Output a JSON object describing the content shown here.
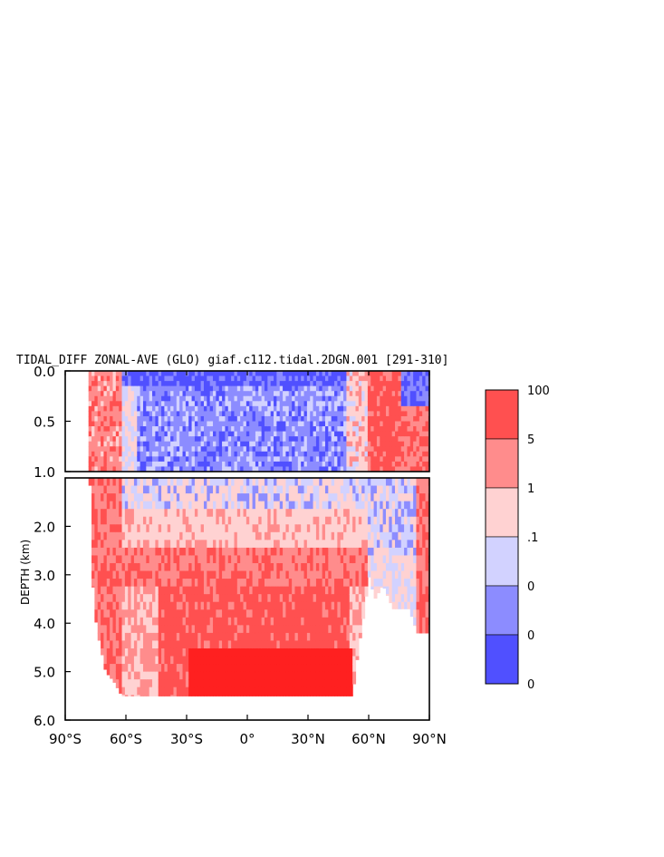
{
  "chart_data": {
    "type": "heatmap",
    "title": "TIDAL_DIFF ZONAL-AVE (GLO) giaf.c112.tidal.2DGN.001 [291-310]",
    "xlabel": "",
    "ylabel": "DEPTH (km)",
    "x_ticks": [
      "90°S",
      "60°S",
      "30°S",
      "0°",
      "30°N",
      "60°N",
      "90°N"
    ],
    "x_tick_values": [
      -90,
      -60,
      -30,
      0,
      30,
      60,
      90
    ],
    "xlim": [
      -90,
      90
    ],
    "upper_panel": {
      "ylim": [
        0.0,
        1.0
      ],
      "y_ticks": [
        "0.0",
        "0.5",
        "1.0"
      ],
      "y_tick_values": [
        0.0,
        0.5,
        1.0
      ]
    },
    "lower_panel": {
      "ylim": [
        1.0,
        6.0
      ],
      "y_ticks": [
        "2.0",
        "3.0",
        "4.0",
        "5.0",
        "6.0"
      ],
      "y_tick_values": [
        2.0,
        3.0,
        4.0,
        5.0,
        6.0
      ]
    },
    "colorbar": {
      "labels": [
        "100",
        "5",
        "1",
        ".1",
        "0",
        "0",
        "0"
      ],
      "colors": [
        "#ff5050",
        "#ff8c8c",
        "#ffd2d2",
        "#d2d2ff",
        "#8c8cff",
        "#5050ff"
      ]
    },
    "bottom_depth": [
      [
        -78,
        0.8
      ],
      [
        -76,
        3.6
      ],
      [
        -74,
        4.2
      ],
      [
        -72,
        4.6
      ],
      [
        -70,
        5.0
      ],
      [
        -66,
        5.2
      ],
      [
        -62,
        5.5
      ],
      [
        -50,
        5.5
      ],
      [
        -30,
        5.5
      ],
      [
        0,
        5.5
      ],
      [
        30,
        5.5
      ],
      [
        52,
        5.5
      ],
      [
        55,
        4.5
      ],
      [
        58,
        3.7
      ],
      [
        60,
        3.0
      ],
      [
        63,
        3.5
      ],
      [
        67,
        3.2
      ],
      [
        72,
        3.7
      ],
      [
        80,
        3.7
      ],
      [
        84,
        4.2
      ],
      [
        90,
        4.2
      ]
    ],
    "regions_upper": [
      {
        "x": [
          -78,
          -62
        ],
        "y": [
          0.0,
          1.0
        ],
        "class": "1 to 5"
      },
      {
        "x": [
          -62,
          45
        ],
        "y": [
          0.0,
          0.15
        ],
        "class": "0 (dark blue)"
      },
      {
        "x": [
          -55,
          48
        ],
        "y": [
          0.15,
          1.0
        ],
        "class": "0 (blue)"
      },
      {
        "x": [
          48,
          58
        ],
        "y": [
          0.0,
          1.0
        ],
        "class": ".1 to 1"
      },
      {
        "x": [
          58,
          75
        ],
        "y": [
          0.0,
          1.0
        ],
        "class": "1 to 100"
      },
      {
        "x": [
          75,
          90
        ],
        "y": [
          0.0,
          0.4
        ],
        "class": "0 (blue)"
      }
    ],
    "regions_lower": [
      {
        "x": [
          -78,
          -62
        ],
        "y": [
          1.0,
          5.5
        ],
        "class": "1 to 5"
      },
      {
        "x": [
          -62,
          55
        ],
        "y": [
          1.0,
          1.5
        ],
        "class": "0 to .1"
      },
      {
        "x": [
          -62,
          55
        ],
        "y": [
          1.5,
          2.3
        ],
        "class": ".1 to 1"
      },
      {
        "x": [
          -62,
          55
        ],
        "y": [
          2.3,
          3.2
        ],
        "class": "1 to 5"
      },
      {
        "x": [
          -45,
          50
        ],
        "y": [
          3.2,
          5.5
        ],
        "class": "5 to 100"
      },
      {
        "x": [
          -30,
          52
        ],
        "y": [
          4.5,
          5.5
        ],
        "class": "100 (max)"
      },
      {
        "x": [
          58,
          78
        ],
        "y": [
          1.0,
          3.5
        ],
        "class": "0 to 1"
      },
      {
        "x": [
          82,
          90
        ],
        "y": [
          1.0,
          4.2
        ],
        "class": "1 to 5"
      }
    ]
  }
}
